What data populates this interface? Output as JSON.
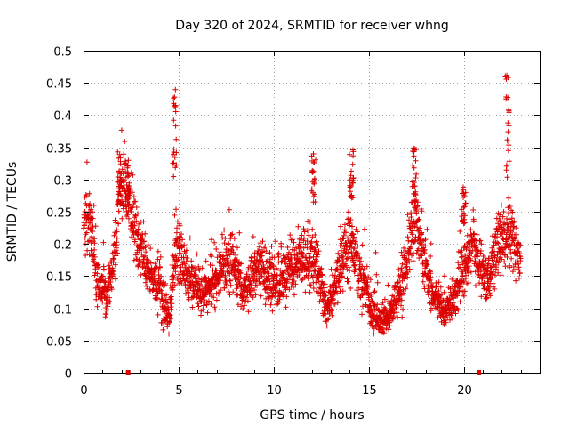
{
  "chart_data": {
    "type": "scatter",
    "title": "Day 320 of 2024, SRMTID for receiver whng",
    "xlabel": "GPS time / hours",
    "ylabel": "SRMTID / TECUs",
    "xlim": [
      0,
      24
    ],
    "ylim": [
      0,
      0.5
    ],
    "x_ticks": [
      0,
      5,
      10,
      15,
      20
    ],
    "x_tick_labels": [
      "0",
      "5",
      "10",
      "15",
      "20"
    ],
    "y_ticks": [
      0,
      0.05,
      0.1,
      0.15,
      0.2,
      0.25,
      0.3,
      0.35,
      0.4,
      0.45,
      0.5
    ],
    "y_tick_labels": [
      "0",
      "0.05",
      "0.1",
      "0.15",
      "0.2",
      "0.25",
      "0.3",
      "0.35",
      "0.4",
      "0.45",
      "0.5"
    ],
    "grid": true,
    "marker": "+",
    "color": "#dd0000",
    "data_range": [
      0,
      23
    ],
    "baseline_markers_x": [
      2.35,
      20.8
    ],
    "series": [
      {
        "name": "SRMTID",
        "envelope": [
          {
            "x": 0.0,
            "y": 0.22,
            "spread": 0.05
          },
          {
            "x": 0.3,
            "y": 0.25,
            "spread": 0.06
          },
          {
            "x": 0.7,
            "y": 0.14,
            "spread": 0.03
          },
          {
            "x": 1.2,
            "y": 0.12,
            "spread": 0.03
          },
          {
            "x": 1.7,
            "y": 0.18,
            "spread": 0.04
          },
          {
            "x": 1.9,
            "y": 0.3,
            "spread": 0.05
          },
          {
            "x": 2.3,
            "y": 0.28,
            "spread": 0.04
          },
          {
            "x": 2.8,
            "y": 0.21,
            "spread": 0.04
          },
          {
            "x": 3.5,
            "y": 0.15,
            "spread": 0.03
          },
          {
            "x": 4.2,
            "y": 0.12,
            "spread": 0.04
          },
          {
            "x": 4.5,
            "y": 0.08,
            "spread": 0.02
          },
          {
            "x": 4.9,
            "y": 0.2,
            "spread": 0.05
          },
          {
            "x": 5.5,
            "y": 0.15,
            "spread": 0.03
          },
          {
            "x": 6.2,
            "y": 0.12,
            "spread": 0.03
          },
          {
            "x": 7.0,
            "y": 0.15,
            "spread": 0.04
          },
          {
            "x": 7.8,
            "y": 0.18,
            "spread": 0.04
          },
          {
            "x": 8.4,
            "y": 0.12,
            "spread": 0.03
          },
          {
            "x": 9.2,
            "y": 0.17,
            "spread": 0.04
          },
          {
            "x": 10.0,
            "y": 0.13,
            "spread": 0.04
          },
          {
            "x": 10.8,
            "y": 0.16,
            "spread": 0.04
          },
          {
            "x": 11.5,
            "y": 0.18,
            "spread": 0.04
          },
          {
            "x": 12.2,
            "y": 0.17,
            "spread": 0.05
          },
          {
            "x": 12.8,
            "y": 0.1,
            "spread": 0.03
          },
          {
            "x": 13.4,
            "y": 0.15,
            "spread": 0.04
          },
          {
            "x": 14.0,
            "y": 0.2,
            "spread": 0.05
          },
          {
            "x": 14.6,
            "y": 0.15,
            "spread": 0.04
          },
          {
            "x": 15.2,
            "y": 0.09,
            "spread": 0.03
          },
          {
            "x": 16.0,
            "y": 0.08,
            "spread": 0.02
          },
          {
            "x": 16.8,
            "y": 0.15,
            "spread": 0.04
          },
          {
            "x": 17.5,
            "y": 0.24,
            "spread": 0.05
          },
          {
            "x": 18.2,
            "y": 0.13,
            "spread": 0.03
          },
          {
            "x": 19.0,
            "y": 0.09,
            "spread": 0.02
          },
          {
            "x": 19.8,
            "y": 0.14,
            "spread": 0.04
          },
          {
            "x": 20.5,
            "y": 0.2,
            "spread": 0.04
          },
          {
            "x": 21.2,
            "y": 0.14,
            "spread": 0.04
          },
          {
            "x": 21.8,
            "y": 0.2,
            "spread": 0.05
          },
          {
            "x": 22.4,
            "y": 0.22,
            "spread": 0.05
          },
          {
            "x": 23.0,
            "y": 0.17,
            "spread": 0.03
          }
        ],
        "peaks": [
          {
            "x": 1.9,
            "ymin": 0.26,
            "ymax": 0.35
          },
          {
            "x": 2.3,
            "ymin": 0.25,
            "ymax": 0.33
          },
          {
            "x": 4.8,
            "ymin": 0.3,
            "ymax": 0.44
          },
          {
            "x": 12.1,
            "ymin": 0.26,
            "ymax": 0.34
          },
          {
            "x": 14.1,
            "ymin": 0.26,
            "ymax": 0.35
          },
          {
            "x": 17.4,
            "ymin": 0.26,
            "ymax": 0.36
          },
          {
            "x": 20.0,
            "ymin": 0.23,
            "ymax": 0.29
          },
          {
            "x": 22.3,
            "ymin": 0.3,
            "ymax": 0.47
          }
        ]
      }
    ]
  }
}
